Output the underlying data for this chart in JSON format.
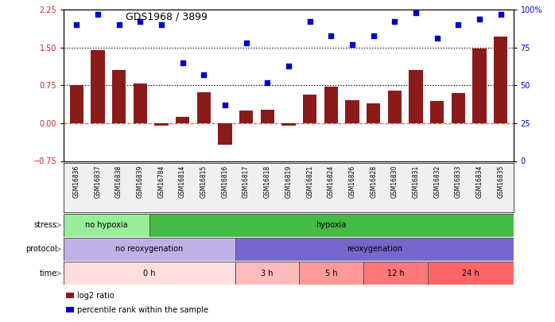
{
  "title": "GDS1968 / 3899",
  "samples": [
    "GSM16836",
    "GSM16837",
    "GSM16838",
    "GSM16839",
    "GSM16784",
    "GSM16814",
    "GSM16815",
    "GSM16816",
    "GSM16817",
    "GSM16818",
    "GSM16819",
    "GSM16821",
    "GSM16824",
    "GSM16826",
    "GSM16828",
    "GSM16830",
    "GSM16831",
    "GSM16832",
    "GSM16833",
    "GSM16834",
    "GSM16835"
  ],
  "log2_ratio": [
    0.75,
    1.45,
    1.05,
    0.78,
    -0.05,
    0.13,
    0.62,
    -0.42,
    0.25,
    0.27,
    -0.05,
    0.56,
    0.72,
    0.46,
    0.4,
    0.65,
    1.05,
    0.44,
    0.6,
    1.48,
    1.72
  ],
  "pct_rank": [
    90,
    97,
    90,
    92,
    90,
    65,
    57,
    37,
    78,
    52,
    63,
    92,
    83,
    77,
    83,
    92,
    98,
    81,
    90,
    94,
    97
  ],
  "ylim_left": [
    -0.75,
    2.25
  ],
  "ylim_right": [
    0,
    100
  ],
  "yticks_left": [
    -0.75,
    0,
    0.75,
    1.5,
    2.25
  ],
  "yticks_right": [
    0,
    25,
    50,
    75,
    100
  ],
  "hlines_dotted": [
    0.75,
    1.5
  ],
  "bar_color": "#8B1A1A",
  "dot_color": "#0000CC",
  "stress_groups": [
    {
      "label": "no hypoxia",
      "start": 0,
      "end": 4,
      "color": "#98EE98"
    },
    {
      "label": "hypoxia",
      "start": 4,
      "end": 21,
      "color": "#44BB44"
    }
  ],
  "protocol_groups": [
    {
      "label": "no reoxygenation",
      "start": 0,
      "end": 8,
      "color": "#C0B0E8"
    },
    {
      "label": "reoxygenation",
      "start": 8,
      "end": 21,
      "color": "#7766CC"
    }
  ],
  "time_groups": [
    {
      "label": "0 h",
      "start": 0,
      "end": 8,
      "color": "#FFDDDD"
    },
    {
      "label": "3 h",
      "start": 8,
      "end": 11,
      "color": "#FFBBBB"
    },
    {
      "label": "5 h",
      "start": 11,
      "end": 14,
      "color": "#FF9999"
    },
    {
      "label": "12 h",
      "start": 14,
      "end": 17,
      "color": "#FF7777"
    },
    {
      "label": "24 h",
      "start": 17,
      "end": 21,
      "color": "#FF6666"
    }
  ],
  "legend_items": [
    {
      "label": "log2 ratio",
      "color": "#8B1A1A"
    },
    {
      "label": "percentile rank within the sample",
      "color": "#0000CC"
    }
  ],
  "bg_color": "#F0F0F0"
}
